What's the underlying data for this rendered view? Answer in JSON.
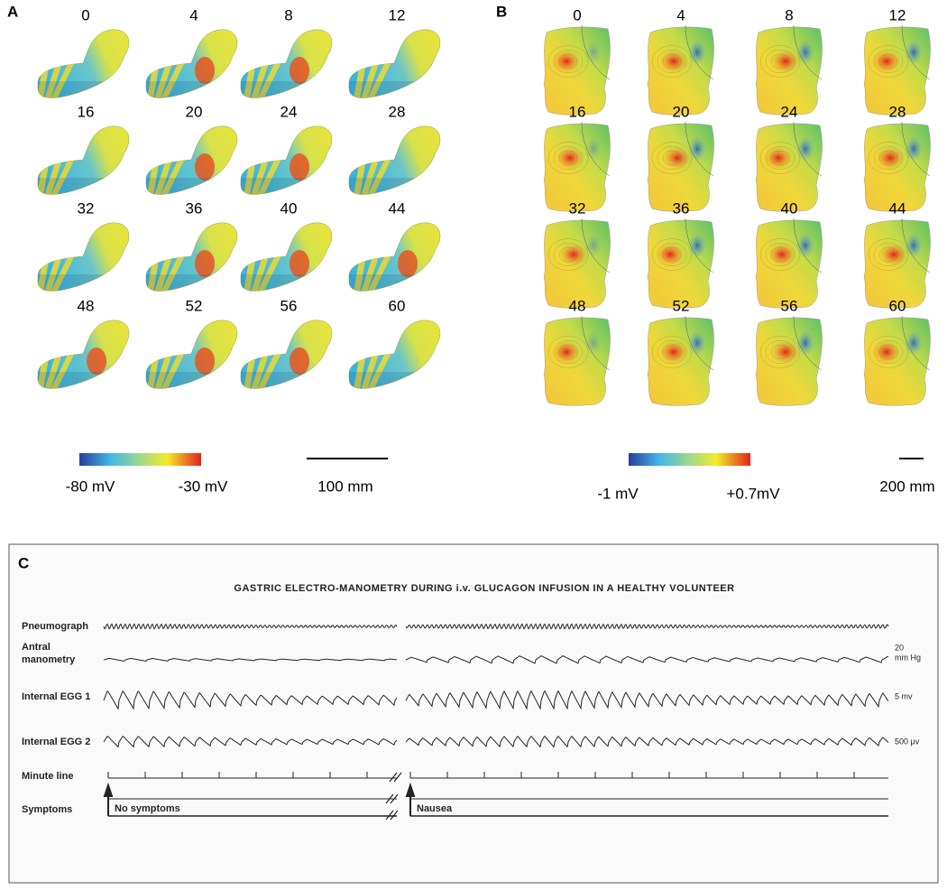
{
  "panels": [
    {
      "label": "A",
      "times": [
        0,
        4,
        8,
        12,
        16,
        20,
        24,
        28,
        32,
        36,
        40,
        44,
        48,
        52,
        56,
        60
      ],
      "colorbar": {
        "min_label": "-80 mV",
        "max_label": "-30 mV"
      },
      "scale_bar": "100 mm"
    },
    {
      "label": "B",
      "times": [
        0,
        4,
        8,
        12,
        16,
        20,
        24,
        28,
        32,
        36,
        40,
        44,
        48,
        52,
        56,
        60
      ],
      "colorbar": {
        "min_label": "-1 mV",
        "max_label": "+0.7mV"
      },
      "scale_bar": "200 mm"
    }
  ],
  "panel_c": {
    "label": "C",
    "title": "GASTRIC ELECTRO-MANOMETRY DURING i.v. GLUCAGON INFUSION IN A HEALTHY VOLUNTEER",
    "rows": [
      {
        "name": [
          "Pneumograph"
        ]
      },
      {
        "name": [
          "Antral",
          "manometry"
        ],
        "scale": [
          "20",
          "mm Hg"
        ]
      },
      {
        "name": [
          "Internal EGG 1"
        ],
        "scale": [
          "5 mv"
        ]
      },
      {
        "name": [
          "Internal EGG 2"
        ],
        "scale": [
          "500 μv"
        ]
      },
      {
        "name": [
          "Minute line"
        ]
      },
      {
        "name": [
          "Symptoms"
        ]
      }
    ],
    "symptoms": [
      "No symptoms",
      "Nausea"
    ]
  }
}
